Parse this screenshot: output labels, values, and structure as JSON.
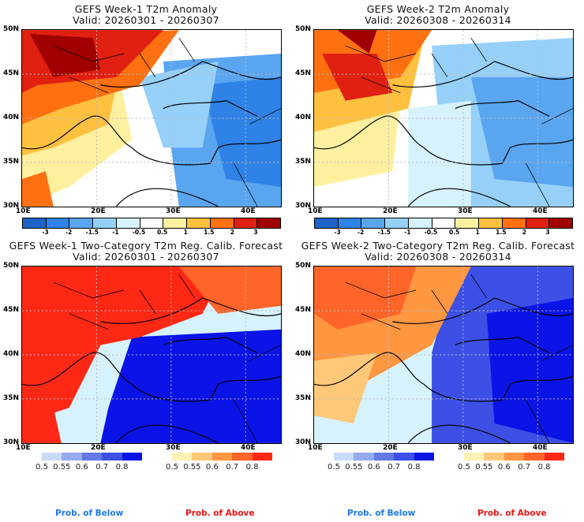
{
  "panels": [
    {
      "title": "GEFS Week-1 T2m Anomaly",
      "valid": "Valid: 20260301 - 20260307",
      "kind": "anomaly"
    },
    {
      "title": "GEFS Week-2 T2m Anomaly",
      "valid": "Valid: 20260308 - 20260314",
      "kind": "anomaly"
    },
    {
      "title": "GEFS Week-1 Two-Category T2m Reg. Calib. Forecast",
      "valid": "Valid: 20260301 - 20260307",
      "kind": "prob"
    },
    {
      "title": "GEFS Week-2 Two-Category T2m Reg. Calib. Forecast",
      "valid": "Valid: 20260308 - 20260314",
      "kind": "prob"
    }
  ],
  "axes": {
    "lat": [
      "50N",
      "45N",
      "40N",
      "35N",
      "30N"
    ],
    "lon": [
      "10E",
      "20E",
      "30E",
      "40E"
    ]
  },
  "anomaly_colorbar": {
    "colors": [
      "#1e64c8",
      "#2f82e6",
      "#5aa5f0",
      "#96d0f8",
      "#d6f2fc",
      "#ffffff",
      "#fff0a0",
      "#ffc040",
      "#ff7010",
      "#e02010",
      "#a00000"
    ],
    "labels": [
      "-3",
      "-2",
      "-1.5",
      "-1",
      "-0.5",
      "0.5",
      "1",
      "1.5",
      "2",
      "3"
    ]
  },
  "prob_below": {
    "colors": [
      "#c8dcfa",
      "#96aaf0",
      "#6478e6",
      "#3c50e6",
      "#0a14e6"
    ],
    "labels": [
      "0.5",
      "0.55",
      "0.6",
      "0.7",
      "0.8"
    ],
    "caption": "Prob. of Below",
    "caption_color": "#1e78f0"
  },
  "prob_above": {
    "colors": [
      "#fff0b4",
      "#ffc878",
      "#ff9640",
      "#ff6428",
      "#ff2814"
    ],
    "labels": [
      "0.5",
      "0.55",
      "0.6",
      "0.7",
      "0.8"
    ],
    "caption": "Prob. of Above",
    "caption_color": "#f01414"
  }
}
